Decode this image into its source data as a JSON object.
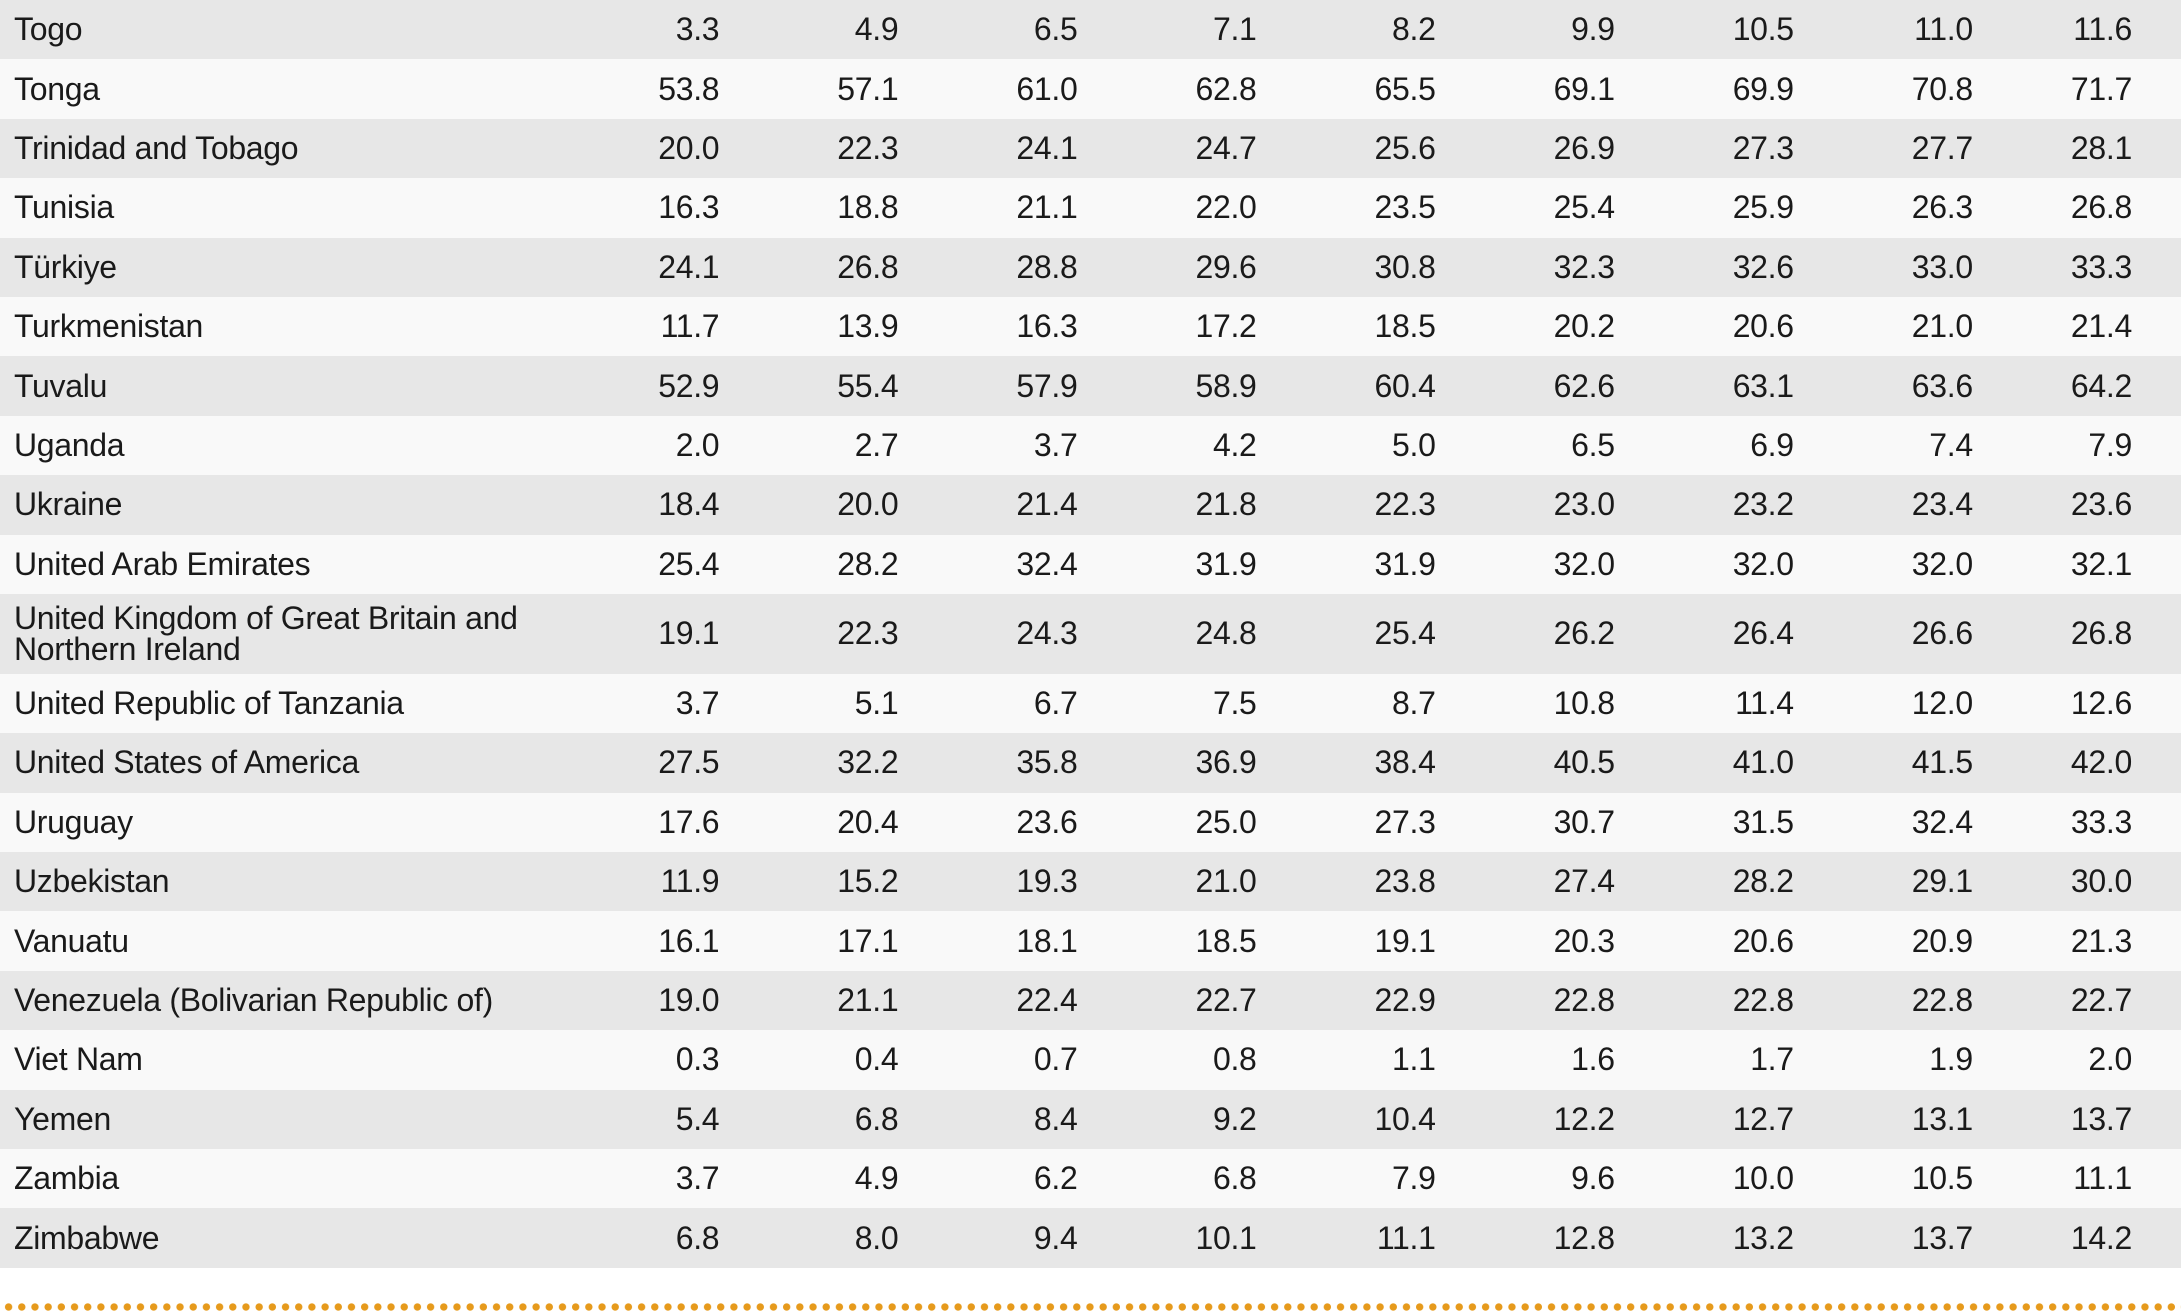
{
  "table": {
    "rows": [
      {
        "country": "Togo",
        "values": [
          "3.3",
          "4.9",
          "6.5",
          "7.1",
          "8.2",
          "9.9",
          "10.5",
          "11.0",
          "11.6"
        ]
      },
      {
        "country": "Tonga",
        "values": [
          "53.8",
          "57.1",
          "61.0",
          "62.8",
          "65.5",
          "69.1",
          "69.9",
          "70.8",
          "71.7"
        ]
      },
      {
        "country": "Trinidad and Tobago",
        "values": [
          "20.0",
          "22.3",
          "24.1",
          "24.7",
          "25.6",
          "26.9",
          "27.3",
          "27.7",
          "28.1"
        ]
      },
      {
        "country": "Tunisia",
        "values": [
          "16.3",
          "18.8",
          "21.1",
          "22.0",
          "23.5",
          "25.4",
          "25.9",
          "26.3",
          "26.8"
        ]
      },
      {
        "country": "Türkiye",
        "values": [
          "24.1",
          "26.8",
          "28.8",
          "29.6",
          "30.8",
          "32.3",
          "32.6",
          "33.0",
          "33.3"
        ]
      },
      {
        "country": "Turkmenistan",
        "values": [
          "11.7",
          "13.9",
          "16.3",
          "17.2",
          "18.5",
          "20.2",
          "20.6",
          "21.0",
          "21.4"
        ]
      },
      {
        "country": "Tuvalu",
        "values": [
          "52.9",
          "55.4",
          "57.9",
          "58.9",
          "60.4",
          "62.6",
          "63.1",
          "63.6",
          "64.2"
        ]
      },
      {
        "country": "Uganda",
        "values": [
          "2.0",
          "2.7",
          "3.7",
          "4.2",
          "5.0",
          "6.5",
          "6.9",
          "7.4",
          "7.9"
        ]
      },
      {
        "country": "Ukraine",
        "values": [
          "18.4",
          "20.0",
          "21.4",
          "21.8",
          "22.3",
          "23.0",
          "23.2",
          "23.4",
          "23.6"
        ]
      },
      {
        "country": "United Arab Emirates",
        "values": [
          "25.4",
          "28.2",
          "32.4",
          "31.9",
          "31.9",
          "32.0",
          "32.0",
          "32.0",
          "32.1"
        ]
      },
      {
        "country": "United Kingdom of Great Britain and Northern Ireland",
        "values": [
          "19.1",
          "22.3",
          "24.3",
          "24.8",
          "25.4",
          "26.2",
          "26.4",
          "26.6",
          "26.8"
        ],
        "tall": true
      },
      {
        "country": "United Republic of Tanzania",
        "values": [
          "3.7",
          "5.1",
          "6.7",
          "7.5",
          "8.7",
          "10.8",
          "11.4",
          "12.0",
          "12.6"
        ]
      },
      {
        "country": "United States of America",
        "values": [
          "27.5",
          "32.2",
          "35.8",
          "36.9",
          "38.4",
          "40.5",
          "41.0",
          "41.5",
          "42.0"
        ]
      },
      {
        "country": "Uruguay",
        "values": [
          "17.6",
          "20.4",
          "23.6",
          "25.0",
          "27.3",
          "30.7",
          "31.5",
          "32.4",
          "33.3"
        ]
      },
      {
        "country": "Uzbekistan",
        "values": [
          "11.9",
          "15.2",
          "19.3",
          "21.0",
          "23.8",
          "27.4",
          "28.2",
          "29.1",
          "30.0"
        ]
      },
      {
        "country": "Vanuatu",
        "values": [
          "16.1",
          "17.1",
          "18.1",
          "18.5",
          "19.1",
          "20.3",
          "20.6",
          "20.9",
          "21.3"
        ]
      },
      {
        "country": "Venezuela (Bolivarian Republic of)",
        "values": [
          "19.0",
          "21.1",
          "22.4",
          "22.7",
          "22.9",
          "22.8",
          "22.8",
          "22.8",
          "22.7"
        ]
      },
      {
        "country": "Viet Nam",
        "values": [
          "0.3",
          "0.4",
          "0.7",
          "0.8",
          "1.1",
          "1.6",
          "1.7",
          "1.9",
          "2.0"
        ]
      },
      {
        "country": "Yemen",
        "values": [
          "5.4",
          "6.8",
          "8.4",
          "9.2",
          "10.4",
          "12.2",
          "12.7",
          "13.1",
          "13.7"
        ]
      },
      {
        "country": "Zambia",
        "values": [
          "3.7",
          "4.9",
          "6.2",
          "6.8",
          "7.9",
          "9.6",
          "10.0",
          "10.5",
          "11.1"
        ]
      },
      {
        "country": "Zimbabwe",
        "values": [
          "6.8",
          "8.0",
          "9.4",
          "10.1",
          "11.1",
          "12.8",
          "13.2",
          "13.7",
          "14.2"
        ]
      }
    ]
  },
  "colors": {
    "row_dark": "#e7e7e7",
    "row_light": "#f9f9f9",
    "dotted_rule": "#e69a1c",
    "text": "#1a1a1a"
  }
}
